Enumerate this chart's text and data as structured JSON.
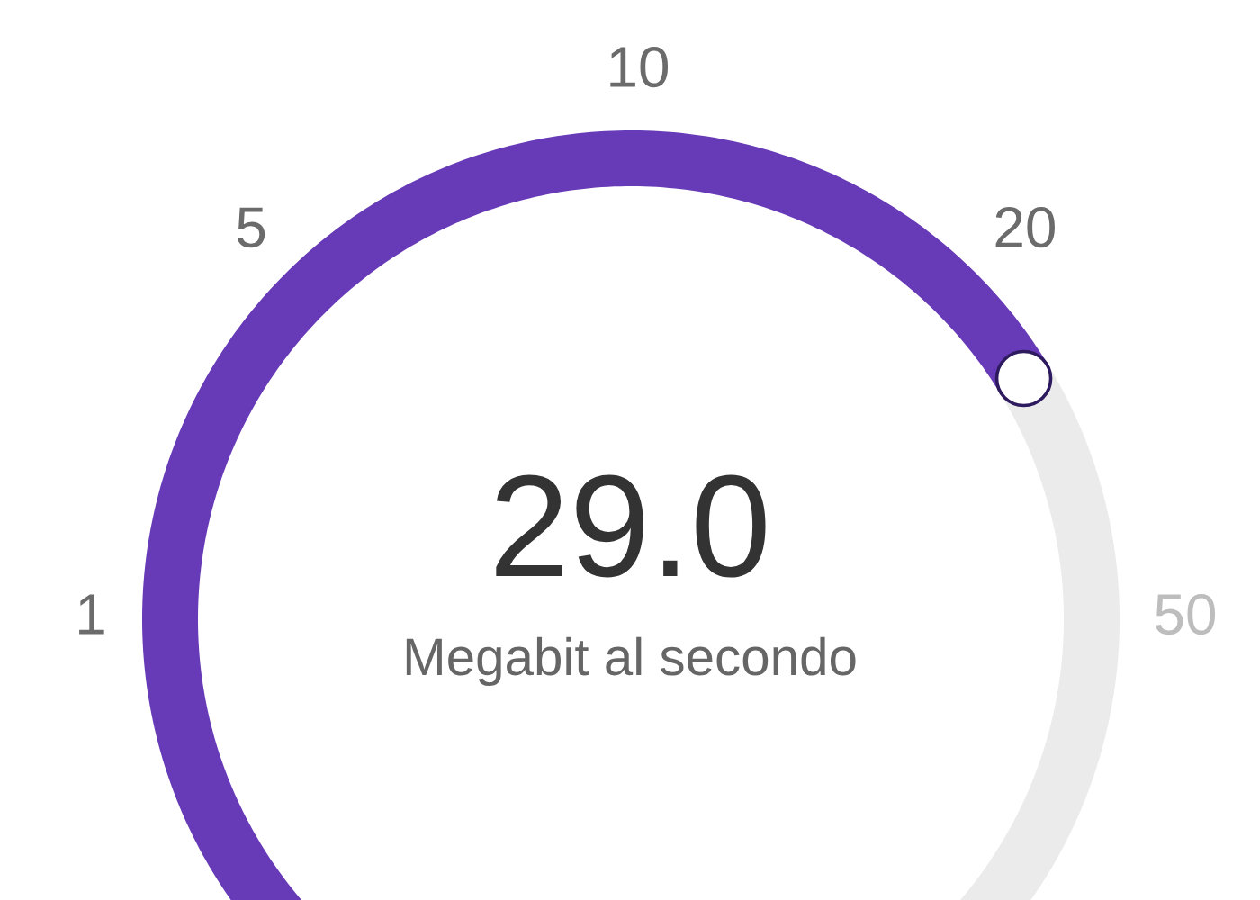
{
  "chart_data": {
    "type": "other",
    "values": [
      29.0
    ],
    "value_labels": [
      "29.0"
    ],
    "ylabel": "Megabit al secondo",
    "annotations": [
      "1",
      "5",
      "10",
      "20",
      "50"
    ],
    "color": "#673ab7"
  }
}
